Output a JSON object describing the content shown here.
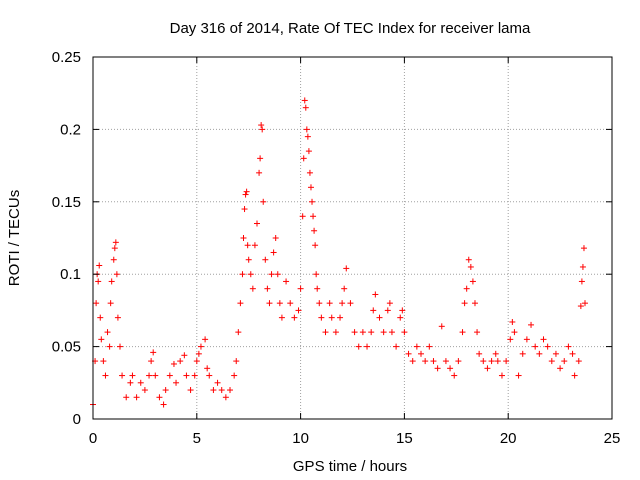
{
  "chart_data": {
    "type": "scatter",
    "title": "Day 316 of 2014, Rate Of TEC Index for receiver lama",
    "xlabel": "GPS time / hours",
    "ylabel": "ROTI / TECUs",
    "xlim": [
      0,
      25
    ],
    "ylim": [
      0,
      0.25
    ],
    "x_ticks": [
      0,
      5,
      10,
      15,
      20,
      25
    ],
    "x_tick_labels": [
      "0",
      "5",
      "10",
      "15",
      "20",
      "25"
    ],
    "y_ticks": [
      0,
      0.05,
      0.1,
      0.15,
      0.2,
      0.25
    ],
    "y_tick_labels": [
      "0",
      "0.05",
      "0.1",
      "0.15",
      "0.2",
      "0.25"
    ],
    "grid": true,
    "marker": "plus",
    "color": "#ff0000",
    "series": [
      {
        "points": [
          [
            0.0,
            0.01
          ],
          [
            0.1,
            0.04
          ],
          [
            0.15,
            0.08
          ],
          [
            0.2,
            0.1
          ],
          [
            0.25,
            0.095
          ],
          [
            0.3,
            0.106
          ],
          [
            0.35,
            0.07
          ],
          [
            0.4,
            0.055
          ],
          [
            0.5,
            0.04
          ],
          [
            0.6,
            0.03
          ],
          [
            0.7,
            0.06
          ],
          [
            0.8,
            0.05
          ],
          [
            0.85,
            0.08
          ],
          [
            0.9,
            0.095
          ],
          [
            1.0,
            0.11
          ],
          [
            1.05,
            0.118
          ],
          [
            1.1,
            0.122
          ],
          [
            1.15,
            0.1
          ],
          [
            1.2,
            0.07
          ],
          [
            1.3,
            0.05
          ],
          [
            1.4,
            0.03
          ],
          [
            1.6,
            0.015
          ],
          [
            1.8,
            0.025
          ],
          [
            1.9,
            0.03
          ],
          [
            2.1,
            0.015
          ],
          [
            2.3,
            0.025
          ],
          [
            2.5,
            0.02
          ],
          [
            2.7,
            0.03
          ],
          [
            2.8,
            0.04
          ],
          [
            2.9,
            0.046
          ],
          [
            3.0,
            0.03
          ],
          [
            3.2,
            0.015
          ],
          [
            3.4,
            0.01
          ],
          [
            3.5,
            0.02
          ],
          [
            3.7,
            0.03
          ],
          [
            3.9,
            0.038
          ],
          [
            4.0,
            0.025
          ],
          [
            4.2,
            0.04
          ],
          [
            4.4,
            0.044
          ],
          [
            4.5,
            0.03
          ],
          [
            4.7,
            0.02
          ],
          [
            4.9,
            0.03
          ],
          [
            5.0,
            0.04
          ],
          [
            5.1,
            0.045
          ],
          [
            5.2,
            0.05
          ],
          [
            5.4,
            0.055
          ],
          [
            5.5,
            0.035
          ],
          [
            5.6,
            0.03
          ],
          [
            5.8,
            0.02
          ],
          [
            6.0,
            0.025
          ],
          [
            6.2,
            0.02
          ],
          [
            6.4,
            0.015
          ],
          [
            6.6,
            0.02
          ],
          [
            6.8,
            0.03
          ],
          [
            6.9,
            0.04
          ],
          [
            7.0,
            0.06
          ],
          [
            7.1,
            0.08
          ],
          [
            7.2,
            0.1
          ],
          [
            7.25,
            0.125
          ],
          [
            7.3,
            0.145
          ],
          [
            7.35,
            0.155
          ],
          [
            7.4,
            0.157
          ],
          [
            7.45,
            0.12
          ],
          [
            7.5,
            0.11
          ],
          [
            7.6,
            0.1
          ],
          [
            7.7,
            0.09
          ],
          [
            7.8,
            0.12
          ],
          [
            7.9,
            0.135
          ],
          [
            8.0,
            0.17
          ],
          [
            8.05,
            0.18
          ],
          [
            8.1,
            0.203
          ],
          [
            8.15,
            0.2
          ],
          [
            8.2,
            0.15
          ],
          [
            8.3,
            0.11
          ],
          [
            8.4,
            0.09
          ],
          [
            8.5,
            0.08
          ],
          [
            8.6,
            0.1
          ],
          [
            8.7,
            0.115
          ],
          [
            8.8,
            0.125
          ],
          [
            8.9,
            0.1
          ],
          [
            9.0,
            0.08
          ],
          [
            9.1,
            0.07
          ],
          [
            9.3,
            0.095
          ],
          [
            9.5,
            0.08
          ],
          [
            9.7,
            0.07
          ],
          [
            9.9,
            0.075
          ],
          [
            10.0,
            0.09
          ],
          [
            10.1,
            0.14
          ],
          [
            10.15,
            0.18
          ],
          [
            10.2,
            0.22
          ],
          [
            10.25,
            0.215
          ],
          [
            10.3,
            0.2
          ],
          [
            10.35,
            0.195
          ],
          [
            10.4,
            0.185
          ],
          [
            10.45,
            0.17
          ],
          [
            10.5,
            0.16
          ],
          [
            10.55,
            0.15
          ],
          [
            10.6,
            0.14
          ],
          [
            10.65,
            0.13
          ],
          [
            10.7,
            0.12
          ],
          [
            10.75,
            0.1
          ],
          [
            10.8,
            0.09
          ],
          [
            10.9,
            0.08
          ],
          [
            11.0,
            0.07
          ],
          [
            11.2,
            0.06
          ],
          [
            11.4,
            0.08
          ],
          [
            11.5,
            0.07
          ],
          [
            11.7,
            0.06
          ],
          [
            11.9,
            0.07
          ],
          [
            12.0,
            0.08
          ],
          [
            12.1,
            0.09
          ],
          [
            12.2,
            0.104
          ],
          [
            12.4,
            0.08
          ],
          [
            12.6,
            0.06
          ],
          [
            12.8,
            0.05
          ],
          [
            13.0,
            0.06
          ],
          [
            13.2,
            0.05
          ],
          [
            13.4,
            0.06
          ],
          [
            13.5,
            0.075
          ],
          [
            13.6,
            0.086
          ],
          [
            13.8,
            0.07
          ],
          [
            14.0,
            0.06
          ],
          [
            14.2,
            0.075
          ],
          [
            14.3,
            0.08
          ],
          [
            14.4,
            0.06
          ],
          [
            14.6,
            0.05
          ],
          [
            14.8,
            0.07
          ],
          [
            14.9,
            0.075
          ],
          [
            15.0,
            0.06
          ],
          [
            15.2,
            0.045
          ],
          [
            15.4,
            0.04
          ],
          [
            15.6,
            0.05
          ],
          [
            15.8,
            0.045
          ],
          [
            16.0,
            0.04
          ],
          [
            16.2,
            0.05
          ],
          [
            16.4,
            0.04
          ],
          [
            16.6,
            0.035
          ],
          [
            16.8,
            0.064
          ],
          [
            17.0,
            0.04
          ],
          [
            17.2,
            0.035
          ],
          [
            17.4,
            0.03
          ],
          [
            17.6,
            0.04
          ],
          [
            17.8,
            0.06
          ],
          [
            17.9,
            0.08
          ],
          [
            18.0,
            0.09
          ],
          [
            18.1,
            0.11
          ],
          [
            18.2,
            0.105
          ],
          [
            18.3,
            0.095
          ],
          [
            18.4,
            0.08
          ],
          [
            18.5,
            0.06
          ],
          [
            18.6,
            0.045
          ],
          [
            18.8,
            0.04
          ],
          [
            19.0,
            0.035
          ],
          [
            19.2,
            0.04
          ],
          [
            19.4,
            0.045
          ],
          [
            19.5,
            0.04
          ],
          [
            19.7,
            0.03
          ],
          [
            19.9,
            0.04
          ],
          [
            20.1,
            0.055
          ],
          [
            20.2,
            0.067
          ],
          [
            20.3,
            0.06
          ],
          [
            20.5,
            0.03
          ],
          [
            20.7,
            0.045
          ],
          [
            20.9,
            0.055
          ],
          [
            21.1,
            0.065
          ],
          [
            21.3,
            0.05
          ],
          [
            21.5,
            0.045
          ],
          [
            21.7,
            0.055
          ],
          [
            21.9,
            0.05
          ],
          [
            22.1,
            0.04
          ],
          [
            22.3,
            0.045
          ],
          [
            22.5,
            0.035
          ],
          [
            22.7,
            0.04
          ],
          [
            22.9,
            0.05
          ],
          [
            23.1,
            0.045
          ],
          [
            23.2,
            0.03
          ],
          [
            23.4,
            0.04
          ],
          [
            23.5,
            0.078
          ],
          [
            23.55,
            0.095
          ],
          [
            23.6,
            0.105
          ],
          [
            23.65,
            0.118
          ],
          [
            23.7,
            0.08
          ]
        ]
      }
    ]
  }
}
